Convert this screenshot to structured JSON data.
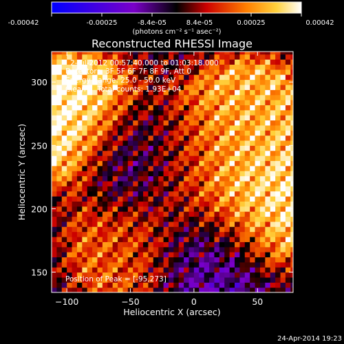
{
  "chart_data": {
    "type": "heatmap",
    "title": "Reconstructed RHESSI Image",
    "xlabel": "Heliocentric X (arcsec)",
    "ylabel": "Heliocentric Y (arcsec)",
    "xlim": [
      -112,
      78
    ],
    "ylim": [
      134,
      324
    ],
    "xticks": [
      -100,
      -50,
      0,
      50
    ],
    "yticks": [
      150,
      200,
      250,
      300
    ],
    "annotations": [
      "2-Jul-2012 00:57:40.000 to 01:03:18.000",
      "Detectors: 3F 5F 6F 7F 8F 9F, Att 0",
      "Energy Range: 25.0 - 50.0 keV",
      "Clean     Total counts: 1.93E+04"
    ],
    "peak_label": "Position of Peak = [-95,273]",
    "peak": [
      -95,
      273
    ],
    "colorbar": {
      "min": -0.00042,
      "max": 0.00042,
      "ticks": [
        "-0.00042",
        "-0.00025",
        "-8.4e-05",
        "8.4e-05",
        "0.00025",
        "0.00042"
      ],
      "unit_label": "(photons cm⁻² s⁻¹ asec⁻²)"
    },
    "colors": {
      "negative": "#0000ff",
      "zero": "#000000",
      "positive": "#ffffff"
    },
    "regions": [
      {
        "x": -95,
        "y": 273,
        "value": 0.00042,
        "note": "bright cluster upper-left"
      },
      {
        "x": 50,
        "y": 205,
        "value": 0.00038,
        "note": "bright cluster right side"
      },
      {
        "x": 45,
        "y": 270,
        "value": 0.0003,
        "note": "bright cluster upper-right"
      },
      {
        "x": -10,
        "y": 240,
        "value": 0.00025,
        "note": "orange patch center"
      },
      {
        "x": -50,
        "y": 170,
        "value": 0.0002,
        "note": "mixed red patch lower-left"
      },
      {
        "x": -40,
        "y": 240,
        "value": -0.0002,
        "note": "purple region center-left"
      },
      {
        "x": 10,
        "y": 160,
        "value": -0.00015,
        "note": "purple/black lower-center"
      }
    ]
  },
  "footer": {
    "timestamp": "24-Apr-2014 19:23"
  }
}
